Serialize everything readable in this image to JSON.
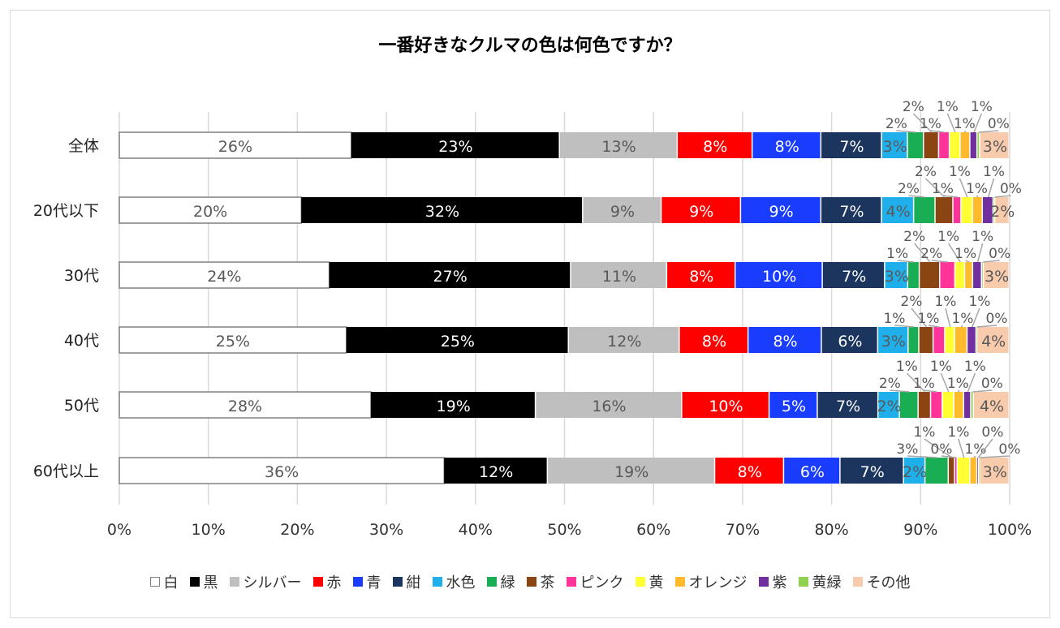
{
  "chart_data": {
    "type": "bar",
    "orientation": "horizontal",
    "stacked": "100%",
    "title": "一番好きなクルマの色は何色ですか？",
    "categories": [
      "全体",
      "20代以下",
      "30代",
      "40代",
      "50代",
      "60代以上"
    ],
    "xlim": [
      0,
      100
    ],
    "x_ticks": [
      "0%",
      "10%",
      "20%",
      "30%",
      "40%",
      "50%",
      "60%",
      "70%",
      "80%",
      "90%",
      "100%"
    ],
    "grid": "vertical",
    "legend": "bottom",
    "data_labels": "percent",
    "series": [
      {
        "name": "白",
        "color": "#ffffff",
        "values": [
          26.0,
          20.4,
          23.6,
          25.4,
          28.2,
          36.3
        ]
      },
      {
        "name": "黒",
        "color": "#000000",
        "values": [
          23.4,
          31.6,
          27.2,
          24.9,
          18.5,
          11.6
        ]
      },
      {
        "name": "シルバー",
        "color": "#bfbfbf",
        "values": [
          13.2,
          8.8,
          10.8,
          12.4,
          16.4,
          18.7
        ]
      },
      {
        "name": "赤",
        "color": "#ff0000",
        "values": [
          8.4,
          8.9,
          7.7,
          7.7,
          9.8,
          7.7
        ]
      },
      {
        "name": "青",
        "color": "#1a3cff",
        "values": [
          7.7,
          9.0,
          9.8,
          8.2,
          5.4,
          6.3
        ]
      },
      {
        "name": "紺",
        "color": "#1c355e",
        "values": [
          6.8,
          6.8,
          7.0,
          6.3,
          6.8,
          7.1
        ]
      },
      {
        "name": "水色",
        "color": "#1fb0ec",
        "values": [
          2.9,
          3.6,
          2.6,
          3.4,
          2.4,
          2.4
        ]
      },
      {
        "name": "緑",
        "color": "#19ae53",
        "values": [
          1.8,
          2.4,
          1.3,
          1.2,
          2.1,
          2.6
        ]
      },
      {
        "name": "茶",
        "color": "#8b4513",
        "values": [
          1.7,
          2.0,
          2.3,
          1.6,
          1.4,
          0.7
        ]
      },
      {
        "name": "ピンク",
        "color": "#ff3399",
        "values": [
          1.2,
          0.9,
          1.7,
          1.3,
          1.3,
          0.3
        ]
      },
      {
        "name": "黄",
        "color": "#ffff33",
        "values": [
          1.2,
          1.3,
          1.1,
          1.1,
          1.3,
          1.4
        ]
      },
      {
        "name": "オレンジ",
        "color": "#ffbb2c",
        "values": [
          1.1,
          1.1,
          0.9,
          1.4,
          1.1,
          0.8
        ]
      },
      {
        "name": "紫",
        "color": "#7030a0",
        "values": [
          0.8,
          1.2,
          1.0,
          1.0,
          0.8,
          0.2
        ]
      },
      {
        "name": "黄緑",
        "color": "#92d050",
        "values": [
          0.3,
          0.2,
          0.2,
          0.1,
          0.3,
          0.1
        ]
      },
      {
        "name": "その他",
        "color": "#f8cbad",
        "values": [
          3.3,
          1.6,
          2.9,
          3.6,
          4.0,
          3.3
        ]
      }
    ]
  }
}
